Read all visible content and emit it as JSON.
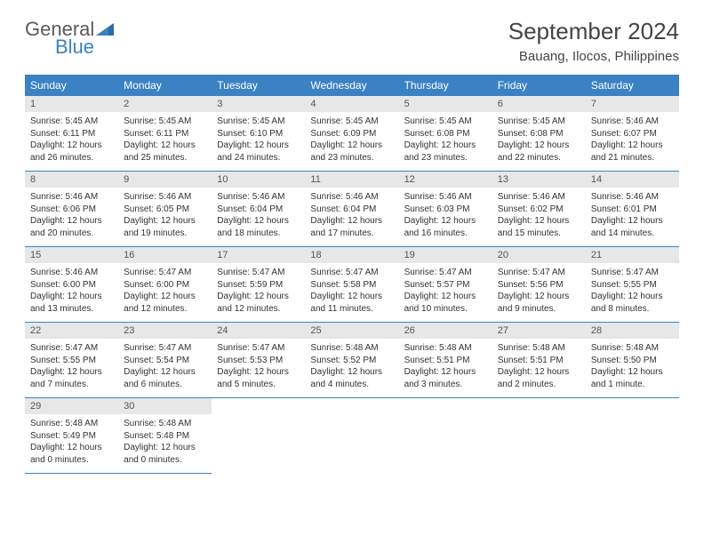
{
  "brand": {
    "general": "General",
    "blue": "Blue"
  },
  "title": "September 2024",
  "location": "Bauang, Ilocos, Philippines",
  "colors": {
    "header_bg": "#3b82c4",
    "header_text": "#ffffff",
    "daynum_bg": "#e7e7e7",
    "border": "#3b82c4",
    "text": "#333333",
    "logo_gray": "#5a5a5a",
    "logo_blue": "#3b82c4",
    "page_bg": "#ffffff"
  },
  "typography": {
    "title_fontsize": 26,
    "location_fontsize": 15,
    "dayhead_fontsize": 12,
    "body_fontsize": 10
  },
  "weekdays": [
    "Sunday",
    "Monday",
    "Tuesday",
    "Wednesday",
    "Thursday",
    "Friday",
    "Saturday"
  ],
  "days": [
    {
      "n": "1",
      "sunrise": "5:45 AM",
      "sunset": "6:11 PM",
      "d1": "Daylight: 12 hours",
      "d2": "and 26 minutes."
    },
    {
      "n": "2",
      "sunrise": "5:45 AM",
      "sunset": "6:11 PM",
      "d1": "Daylight: 12 hours",
      "d2": "and 25 minutes."
    },
    {
      "n": "3",
      "sunrise": "5:45 AM",
      "sunset": "6:10 PM",
      "d1": "Daylight: 12 hours",
      "d2": "and 24 minutes."
    },
    {
      "n": "4",
      "sunrise": "5:45 AM",
      "sunset": "6:09 PM",
      "d1": "Daylight: 12 hours",
      "d2": "and 23 minutes."
    },
    {
      "n": "5",
      "sunrise": "5:45 AM",
      "sunset": "6:08 PM",
      "d1": "Daylight: 12 hours",
      "d2": "and 23 minutes."
    },
    {
      "n": "6",
      "sunrise": "5:45 AM",
      "sunset": "6:08 PM",
      "d1": "Daylight: 12 hours",
      "d2": "and 22 minutes."
    },
    {
      "n": "7",
      "sunrise": "5:46 AM",
      "sunset": "6:07 PM",
      "d1": "Daylight: 12 hours",
      "d2": "and 21 minutes."
    },
    {
      "n": "8",
      "sunrise": "5:46 AM",
      "sunset": "6:06 PM",
      "d1": "Daylight: 12 hours",
      "d2": "and 20 minutes."
    },
    {
      "n": "9",
      "sunrise": "5:46 AM",
      "sunset": "6:05 PM",
      "d1": "Daylight: 12 hours",
      "d2": "and 19 minutes."
    },
    {
      "n": "10",
      "sunrise": "5:46 AM",
      "sunset": "6:04 PM",
      "d1": "Daylight: 12 hours",
      "d2": "and 18 minutes."
    },
    {
      "n": "11",
      "sunrise": "5:46 AM",
      "sunset": "6:04 PM",
      "d1": "Daylight: 12 hours",
      "d2": "and 17 minutes."
    },
    {
      "n": "12",
      "sunrise": "5:46 AM",
      "sunset": "6:03 PM",
      "d1": "Daylight: 12 hours",
      "d2": "and 16 minutes."
    },
    {
      "n": "13",
      "sunrise": "5:46 AM",
      "sunset": "6:02 PM",
      "d1": "Daylight: 12 hours",
      "d2": "and 15 minutes."
    },
    {
      "n": "14",
      "sunrise": "5:46 AM",
      "sunset": "6:01 PM",
      "d1": "Daylight: 12 hours",
      "d2": "and 14 minutes."
    },
    {
      "n": "15",
      "sunrise": "5:46 AM",
      "sunset": "6:00 PM",
      "d1": "Daylight: 12 hours",
      "d2": "and 13 minutes."
    },
    {
      "n": "16",
      "sunrise": "5:47 AM",
      "sunset": "6:00 PM",
      "d1": "Daylight: 12 hours",
      "d2": "and 12 minutes."
    },
    {
      "n": "17",
      "sunrise": "5:47 AM",
      "sunset": "5:59 PM",
      "d1": "Daylight: 12 hours",
      "d2": "and 12 minutes."
    },
    {
      "n": "18",
      "sunrise": "5:47 AM",
      "sunset": "5:58 PM",
      "d1": "Daylight: 12 hours",
      "d2": "and 11 minutes."
    },
    {
      "n": "19",
      "sunrise": "5:47 AM",
      "sunset": "5:57 PM",
      "d1": "Daylight: 12 hours",
      "d2": "and 10 minutes."
    },
    {
      "n": "20",
      "sunrise": "5:47 AM",
      "sunset": "5:56 PM",
      "d1": "Daylight: 12 hours",
      "d2": "and 9 minutes."
    },
    {
      "n": "21",
      "sunrise": "5:47 AM",
      "sunset": "5:55 PM",
      "d1": "Daylight: 12 hours",
      "d2": "and 8 minutes."
    },
    {
      "n": "22",
      "sunrise": "5:47 AM",
      "sunset": "5:55 PM",
      "d1": "Daylight: 12 hours",
      "d2": "and 7 minutes."
    },
    {
      "n": "23",
      "sunrise": "5:47 AM",
      "sunset": "5:54 PM",
      "d1": "Daylight: 12 hours",
      "d2": "and 6 minutes."
    },
    {
      "n": "24",
      "sunrise": "5:47 AM",
      "sunset": "5:53 PM",
      "d1": "Daylight: 12 hours",
      "d2": "and 5 minutes."
    },
    {
      "n": "25",
      "sunrise": "5:48 AM",
      "sunset": "5:52 PM",
      "d1": "Daylight: 12 hours",
      "d2": "and 4 minutes."
    },
    {
      "n": "26",
      "sunrise": "5:48 AM",
      "sunset": "5:51 PM",
      "d1": "Daylight: 12 hours",
      "d2": "and 3 minutes."
    },
    {
      "n": "27",
      "sunrise": "5:48 AM",
      "sunset": "5:51 PM",
      "d1": "Daylight: 12 hours",
      "d2": "and 2 minutes."
    },
    {
      "n": "28",
      "sunrise": "5:48 AM",
      "sunset": "5:50 PM",
      "d1": "Daylight: 12 hours",
      "d2": "and 1 minute."
    },
    {
      "n": "29",
      "sunrise": "5:48 AM",
      "sunset": "5:49 PM",
      "d1": "Daylight: 12 hours",
      "d2": "and 0 minutes."
    },
    {
      "n": "30",
      "sunrise": "5:48 AM",
      "sunset": "5:48 PM",
      "d1": "Daylight: 12 hours",
      "d2": "and 0 minutes."
    }
  ],
  "labels": {
    "sunrise": "Sunrise:",
    "sunset": "Sunset:"
  },
  "layout": {
    "columns": 7,
    "rows": 5,
    "trailing_empty": 5,
    "cell_min_height": 62
  }
}
